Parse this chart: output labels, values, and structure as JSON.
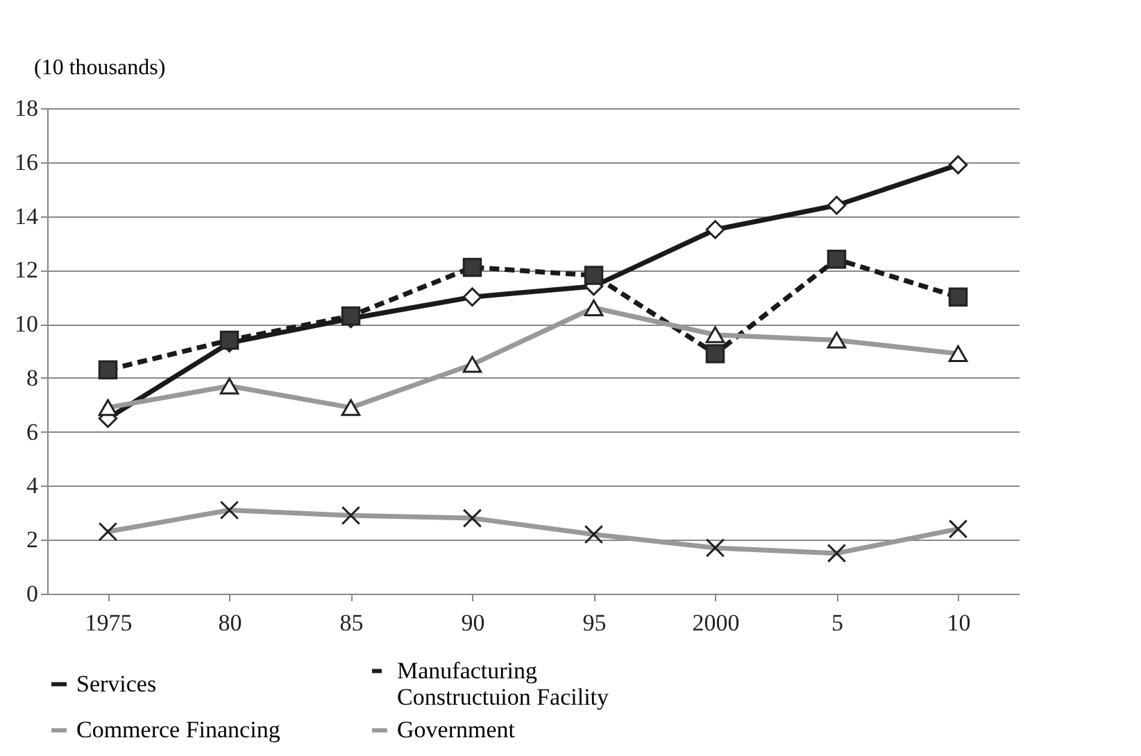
{
  "chart_data": {
    "type": "line",
    "ylabel": "(10 thousands)",
    "categories": [
      "1975",
      "80",
      "85",
      "90",
      "95",
      "2000",
      "5",
      "10"
    ],
    "ylim": [
      0,
      18
    ],
    "yticks": [
      0,
      2,
      4,
      6,
      8,
      10,
      12,
      14,
      16,
      18
    ],
    "grid": "y",
    "legend": "bottom",
    "series": [
      {
        "name": "Services",
        "color": "#1a1a1a",
        "line_style": "solid",
        "marker": "diamond",
        "values": [
          6.5,
          9.3,
          10.2,
          11.0,
          11.4,
          13.5,
          14.4,
          15.9
        ]
      },
      {
        "name": "Manufacturing\nConstructuion Facility",
        "color": "#1a1a1a",
        "line_style": "dashed",
        "marker": "square",
        "values": [
          8.3,
          9.4,
          10.3,
          12.1,
          11.8,
          8.9,
          12.4,
          11.0
        ]
      },
      {
        "name": "Commerce Financing",
        "color": "#999999",
        "line_style": "solid",
        "marker": "triangle",
        "values": [
          6.9,
          7.7,
          6.9,
          8.5,
          10.6,
          9.6,
          9.4,
          8.9
        ]
      },
      {
        "name": "Government",
        "color": "#999999",
        "line_style": "solid",
        "marker": "cross",
        "values": [
          2.3,
          3.1,
          2.9,
          2.8,
          2.2,
          1.7,
          1.5,
          2.4
        ]
      }
    ]
  }
}
